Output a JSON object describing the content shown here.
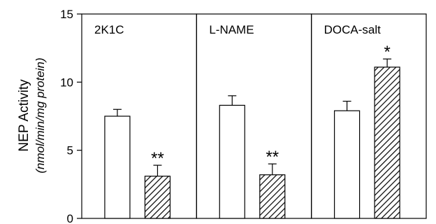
{
  "chart_data": {
    "type": "bar",
    "ylabel": "NEP Activity",
    "ylabel_unit": "(nmol/min/mg protein)",
    "ylim": [
      0,
      15
    ],
    "yticks": [
      "0",
      "5",
      "10",
      "15"
    ],
    "grid": false,
    "panels": [
      {
        "label": "2K1C",
        "bars": [
          {
            "style": "open",
            "value": 7.5,
            "error": 0.5,
            "sig": ""
          },
          {
            "style": "hatched",
            "value": 3.1,
            "error": 0.8,
            "sig": "**"
          }
        ]
      },
      {
        "label": "L-NAME",
        "bars": [
          {
            "style": "open",
            "value": 8.3,
            "error": 0.7,
            "sig": ""
          },
          {
            "style": "hatched",
            "value": 3.2,
            "error": 0.8,
            "sig": "**"
          }
        ]
      },
      {
        "label": "DOCA-salt",
        "bars": [
          {
            "style": "open",
            "value": 7.9,
            "error": 0.7,
            "sig": ""
          },
          {
            "style": "hatched",
            "value": 11.1,
            "error": 0.6,
            "sig": "*"
          }
        ]
      }
    ]
  }
}
